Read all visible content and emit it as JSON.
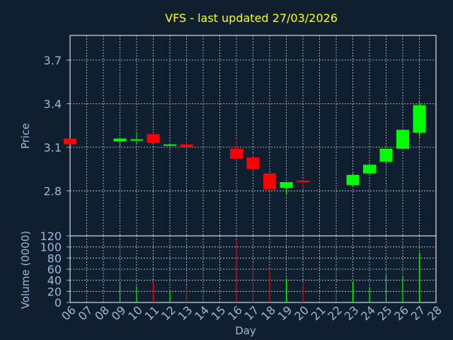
{
  "chart_data": [
    {
      "type": "candlestick",
      "title": "VFS - last updated 27/03/2026",
      "xlabel": "",
      "ylabel": "Price",
      "ylim": [
        2.49,
        3.87
      ],
      "yticks": [
        "2.8",
        "3.1",
        "3.4",
        "3.7"
      ],
      "grid": true,
      "colors": {
        "up": "#00ff00",
        "down": "#ff0000",
        "title": "#ffff00",
        "axis_text": "#9ab8d6",
        "grid": "#ffffff"
      },
      "x": [
        "06",
        "07",
        "08",
        "09",
        "10",
        "11",
        "12",
        "13",
        "14",
        "15",
        "16",
        "17",
        "18",
        "19",
        "20",
        "21",
        "22",
        "23",
        "24",
        "25",
        "26",
        "27",
        "28"
      ],
      "candles": [
        {
          "day": "06",
          "open": 3.16,
          "high": 3.16,
          "low": 3.12,
          "close": 3.12
        },
        {
          "day": "09",
          "open": 3.14,
          "high": 3.17,
          "low": 3.11,
          "close": 3.16
        },
        {
          "day": "10",
          "open": 3.15,
          "high": 3.21,
          "low": 3.13,
          "close": 3.155
        },
        {
          "day": "11",
          "open": 3.19,
          "high": 3.2,
          "low": 3.13,
          "close": 3.13
        },
        {
          "day": "12",
          "open": 3.115,
          "high": 3.125,
          "low": 3.11,
          "close": 3.12
        },
        {
          "day": "13",
          "open": 3.12,
          "high": 3.16,
          "low": 3.1,
          "close": 3.1
        },
        {
          "day": "16",
          "open": 3.09,
          "high": 3.15,
          "low": 3.01,
          "close": 3.02
        },
        {
          "day": "17",
          "open": 3.03,
          "high": 3.06,
          "low": 2.93,
          "close": 2.95
        },
        {
          "day": "18",
          "open": 2.92,
          "high": 2.92,
          "low": 2.8,
          "close": 2.81
        },
        {
          "day": "19",
          "open": 2.82,
          "high": 2.86,
          "low": 2.78,
          "close": 2.86
        },
        {
          "day": "20",
          "open": 2.87,
          "high": 2.87,
          "low": 2.83,
          "close": 2.86
        },
        {
          "day": "23",
          "open": 2.84,
          "high": 2.92,
          "low": 2.83,
          "close": 2.91
        },
        {
          "day": "24",
          "open": 2.92,
          "high": 2.98,
          "low": 2.91,
          "close": 2.98
        },
        {
          "day": "25",
          "open": 3.0,
          "high": 3.09,
          "low": 2.99,
          "close": 3.09
        },
        {
          "day": "26",
          "open": 3.09,
          "high": 3.22,
          "low": 3.08,
          "close": 3.22
        },
        {
          "day": "27",
          "open": 3.2,
          "high": 3.41,
          "low": 3.17,
          "close": 3.39
        }
      ]
    },
    {
      "type": "bar",
      "xlabel": "Day",
      "ylabel": "Volume (0000)",
      "ylim": [
        0,
        120
      ],
      "yticks": [
        "0",
        "20",
        "40",
        "60",
        "80",
        "100",
        "120"
      ],
      "grid": true,
      "categories": [
        "06",
        "07",
        "08",
        "09",
        "10",
        "11",
        "12",
        "13",
        "14",
        "15",
        "16",
        "17",
        "18",
        "19",
        "20",
        "21",
        "22",
        "23",
        "24",
        "25",
        "26",
        "27",
        "28"
      ],
      "values": [
        {
          "day": "09",
          "value": 36,
          "dir": "up"
        },
        {
          "day": "10",
          "value": 29,
          "dir": "up"
        },
        {
          "day": "11",
          "value": 35,
          "dir": "down"
        },
        {
          "day": "12",
          "value": 19,
          "dir": "up"
        },
        {
          "day": "13",
          "value": 30,
          "dir": "down"
        },
        {
          "day": "16",
          "value": 112,
          "dir": "down"
        },
        {
          "day": "17",
          "value": 70,
          "dir": "down"
        },
        {
          "day": "18",
          "value": 60,
          "dir": "down"
        },
        {
          "day": "19",
          "value": 43,
          "dir": "up"
        },
        {
          "day": "20",
          "value": 33,
          "dir": "down"
        },
        {
          "day": "23",
          "value": 38,
          "dir": "up"
        },
        {
          "day": "24",
          "value": 28,
          "dir": "up"
        },
        {
          "day": "25",
          "value": 50,
          "dir": "up"
        },
        {
          "day": "26",
          "value": 48,
          "dir": "up"
        },
        {
          "day": "27",
          "value": 90,
          "dir": "up"
        }
      ]
    }
  ]
}
